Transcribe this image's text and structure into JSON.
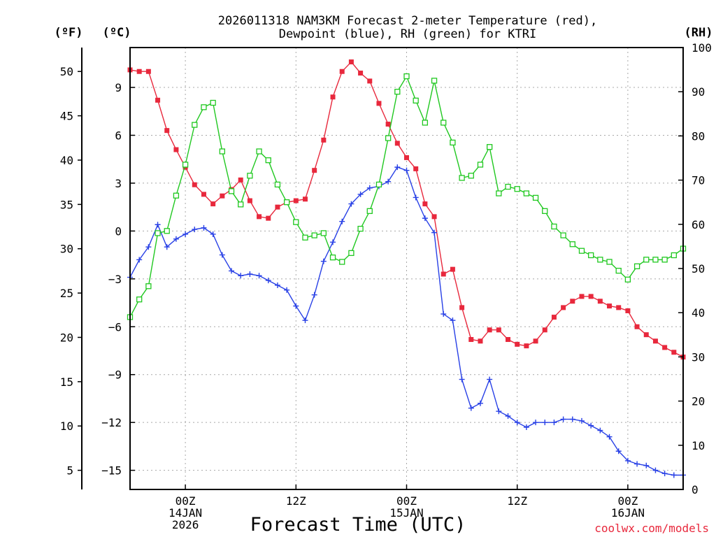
{
  "chart_data": {
    "type": "line",
    "title": [
      "2026011318 NAM3KM Forecast 2-meter Temperature (red),",
      "Dewpoint (blue), RH (green) for KTRI"
    ],
    "xlabel": "Forecast Time (UTC)",
    "watermark": "coolwx.com/models",
    "axis_labels": {
      "fahrenheit": "(ºF)",
      "celsius": "(ºC)",
      "rh": "(RH)"
    },
    "x_hours": {
      "start": 0,
      "end": 60,
      "step": 1,
      "note": "hours from 2026-01-13 18Z"
    },
    "x_ticks": [
      {
        "hour": 6,
        "lines": [
          "00Z",
          "14JAN",
          "2026"
        ]
      },
      {
        "hour": 18,
        "lines": [
          "12Z"
        ]
      },
      {
        "hour": 30,
        "lines": [
          "00Z",
          "15JAN"
        ]
      },
      {
        "hour": 42,
        "lines": [
          "12Z"
        ]
      },
      {
        "hour": 54,
        "lines": [
          "00Z",
          "16JAN"
        ]
      }
    ],
    "celsius_axis": {
      "min": -16.2,
      "max": 11.5,
      "ticks": [
        9,
        6,
        3,
        0,
        -3,
        -6,
        -9,
        -12,
        -15
      ],
      "tick_labels": [
        "9",
        "6",
        "3",
        "0",
        "−3",
        "−6",
        "−9",
        "−12",
        "−15"
      ]
    },
    "fahrenheit_axis": {
      "ticks": [
        50,
        45,
        40,
        35,
        30,
        25,
        20,
        15,
        10,
        5
      ],
      "tick_labels": [
        "50",
        "45",
        "40",
        "35",
        "30",
        "25",
        "20",
        "15",
        "10",
        "5"
      ]
    },
    "rh_axis": {
      "min": 0,
      "max": 100,
      "ticks": [
        0,
        10,
        20,
        30,
        40,
        50,
        60,
        70,
        80,
        90,
        100
      ],
      "tick_labels": [
        "0",
        "10",
        "20",
        "30",
        "40",
        "50",
        "60",
        "70",
        "80",
        "90",
        "100"
      ]
    },
    "series": [
      {
        "name": "2-meter Temperature",
        "unit": "°C",
        "axis": "celsius",
        "color": "#e8283c",
        "marker": "filled-square",
        "values": [
          10.1,
          10.0,
          10.0,
          8.2,
          6.3,
          5.1,
          4.0,
          2.9,
          2.3,
          1.7,
          2.2,
          2.6,
          3.2,
          1.9,
          0.9,
          0.8,
          1.5,
          1.8,
          1.9,
          2.0,
          3.8,
          5.7,
          8.4,
          10.0,
          10.6,
          9.9,
          9.4,
          8.0,
          6.7,
          5.5,
          4.6,
          3.9,
          1.7,
          0.9,
          -2.7,
          -2.4,
          -4.8,
          -6.8,
          -6.9,
          -6.2,
          -6.2,
          -6.8,
          -7.1,
          -7.2,
          -6.9,
          -6.2,
          -5.4,
          -4.8,
          -4.4,
          -4.1,
          -4.1,
          -4.4,
          -4.7,
          -4.8,
          -5.0,
          -6.0,
          -6.5,
          -6.9,
          -7.3,
          -7.6,
          -7.9
        ]
      },
      {
        "name": "Dewpoint",
        "unit": "°C",
        "axis": "celsius",
        "color": "#2840e6",
        "marker": "plus",
        "values": [
          -2.9,
          -1.8,
          -1.0,
          0.4,
          -1.0,
          -0.5,
          -0.2,
          0.1,
          0.2,
          -0.2,
          -1.5,
          -2.5,
          -2.8,
          -2.7,
          -2.8,
          -3.1,
          -3.4,
          -3.7,
          -4.7,
          -5.6,
          -4.0,
          -1.9,
          -0.7,
          0.6,
          1.7,
          2.3,
          2.7,
          2.8,
          3.1,
          4.0,
          3.8,
          2.1,
          0.8,
          -0.1,
          -5.2,
          -5.6,
          -9.3,
          -11.1,
          -10.8,
          -9.3,
          -11.3,
          -11.6,
          -12.0,
          -12.3,
          -12.0,
          -12.0,
          -12.0,
          -11.8,
          -11.8,
          -11.9,
          -12.2,
          -12.5,
          -12.9,
          -13.8,
          -14.4,
          -14.6,
          -14.7,
          -15.0,
          -15.2,
          -15.3,
          -15.3
        ]
      },
      {
        "name": "RH",
        "unit": "%",
        "axis": "rh",
        "color": "#20c820",
        "marker": "open-square",
        "values": [
          39,
          43,
          46,
          58,
          58.5,
          66.5,
          73.5,
          82.5,
          86.5,
          87.5,
          76.5,
          67.5,
          64.5,
          71,
          76.5,
          74.5,
          69,
          65,
          60.5,
          57,
          57.5,
          58,
          52.5,
          51.5,
          53.5,
          59,
          63,
          69,
          79.5,
          90,
          93.5,
          88,
          83,
          92.5,
          83,
          78.5,
          70.5,
          71,
          73.5,
          77.5,
          67,
          68.5,
          68,
          67,
          66,
          63,
          59.5,
          57.5,
          55.5,
          54,
          53,
          52,
          51.5,
          49.5,
          47.5,
          50.5,
          52,
          52,
          52,
          53,
          54.5
        ]
      }
    ]
  }
}
